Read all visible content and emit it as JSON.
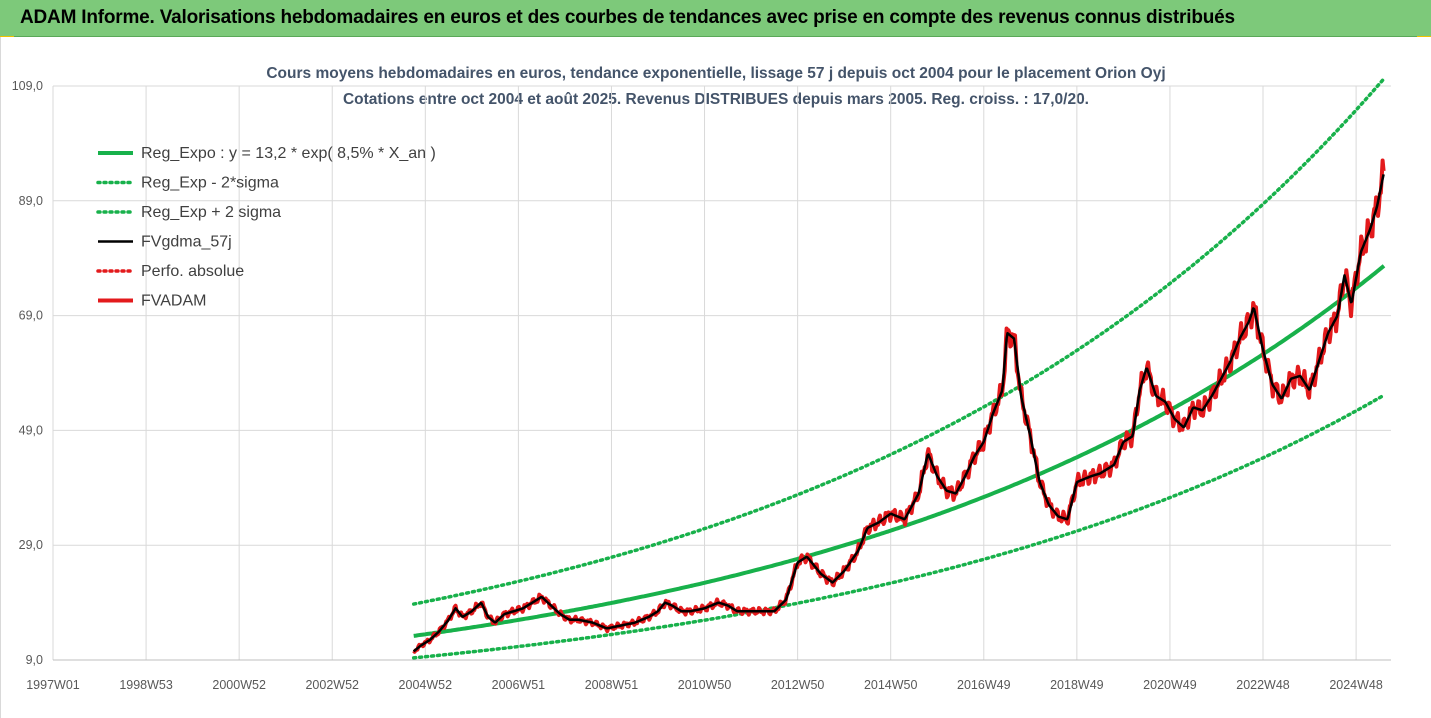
{
  "header": {
    "title": "ADAM Informe. Valorisations hebdomadaires en euros et des courbes de tendances avec prise en compte des revenus connus distribués"
  },
  "chart_data": {
    "type": "line",
    "title": "Cours moyens hebdomadaires en euros, tendance exponentielle, lissage 57 j depuis oct 2004 pour le placement Orion Oyj",
    "subtitle": "Cotations entre oct 2004 et août 2025. Revenus DISTRIBUES depuis mars 2005. Reg. croiss. : 17,0/20.",
    "ylim": [
      9.0,
      109.0
    ],
    "xlim": [
      1997.0,
      2025.75
    ],
    "y_ticks": [
      "9,0",
      "29,0",
      "49,0",
      "69,0",
      "89,0",
      "109,0"
    ],
    "y_tick_values": [
      9,
      29,
      49,
      69,
      89,
      109
    ],
    "x_ticks": [
      "1997W01",
      "1998W53",
      "2000W52",
      "2002W52",
      "2004W52",
      "2006W51",
      "2008W51",
      "2010W50",
      "2012W50",
      "2014W50",
      "2016W49",
      "2018W49",
      "2020W49",
      "2022W48",
      "2024W48"
    ],
    "x_tick_values": [
      1997.0,
      1999.0,
      2001.0,
      2003.0,
      2005.0,
      2007.0,
      2009.0,
      2011.0,
      2013.0,
      2015.0,
      2017.0,
      2019.0,
      2021.0,
      2023.0,
      2025.0
    ],
    "grid": true,
    "legend_position": "top-left",
    "regression": {
      "a": 13.2,
      "rate": 0.085,
      "start_year": 2004.75,
      "end_year": 2025.6
    },
    "series": [
      {
        "name": "Reg_Expo : y = 13,2 * exp( 8,5% *  X_an )",
        "color": "#18b14b",
        "style": "solid",
        "kind": "reg",
        "sigma_factor": 1.0
      },
      {
        "name": "Reg_Exp - 2*sigma",
        "color": "#18b14b",
        "style": "dotted",
        "kind": "reg",
        "sigma_factor": 0.71
      },
      {
        "name": "Reg_Exp + 2 sigma",
        "color": "#18b14b",
        "style": "dotted",
        "kind": "reg",
        "sigma_factor": 1.42
      },
      {
        "name": "FVgdma_57j",
        "color": "#000000",
        "style": "solid",
        "kind": "smooth"
      },
      {
        "name": "Perfo. absolue",
        "color": "#e31a1c",
        "style": "dotted",
        "kind": "none"
      },
      {
        "name": "FVADAM",
        "color": "#e31a1c",
        "style": "solid",
        "kind": "price"
      }
    ],
    "price_points": [
      [
        2004.75,
        10.5
      ],
      [
        2004.9,
        11.5
      ],
      [
        2005.1,
        12.5
      ],
      [
        2005.3,
        14.0
      ],
      [
        2005.5,
        16.0
      ],
      [
        2005.65,
        18.0
      ],
      [
        2005.8,
        16.5
      ],
      [
        2006.0,
        17.5
      ],
      [
        2006.2,
        19.0
      ],
      [
        2006.35,
        16.5
      ],
      [
        2006.5,
        15.5
      ],
      [
        2006.7,
        17.0
      ],
      [
        2006.9,
        17.5
      ],
      [
        2007.1,
        18.0
      ],
      [
        2007.3,
        19.0
      ],
      [
        2007.5,
        20.0
      ],
      [
        2007.7,
        18.5
      ],
      [
        2007.9,
        17.0
      ],
      [
        2008.1,
        16.0
      ],
      [
        2008.3,
        16.0
      ],
      [
        2008.6,
        15.5
      ],
      [
        2008.9,
        14.5
      ],
      [
        2009.2,
        15.0
      ],
      [
        2009.5,
        15.5
      ],
      [
        2009.8,
        16.5
      ],
      [
        2010.0,
        17.5
      ],
      [
        2010.15,
        19.0
      ],
      [
        2010.3,
        18.5
      ],
      [
        2010.5,
        17.5
      ],
      [
        2010.7,
        17.5
      ],
      [
        2011.0,
        18.0
      ],
      [
        2011.3,
        19.0
      ],
      [
        2011.5,
        18.5
      ],
      [
        2011.7,
        17.5
      ],
      [
        2012.0,
        17.5
      ],
      [
        2012.3,
        17.5
      ],
      [
        2012.5,
        17.5
      ],
      [
        2012.75,
        19.5
      ],
      [
        2013.0,
        26.0
      ],
      [
        2013.2,
        27.0
      ],
      [
        2013.5,
        24.0
      ],
      [
        2013.75,
        22.5
      ],
      [
        2014.0,
        24.5
      ],
      [
        2014.3,
        28.0
      ],
      [
        2014.5,
        32.0
      ],
      [
        2014.75,
        33.0
      ],
      [
        2015.0,
        34.5
      ],
      [
        2015.3,
        33.5
      ],
      [
        2015.6,
        38.0
      ],
      [
        2015.8,
        45.0
      ],
      [
        2016.0,
        41.0
      ],
      [
        2016.2,
        38.5
      ],
      [
        2016.4,
        38.0
      ],
      [
        2016.6,
        41.0
      ],
      [
        2016.8,
        44.5
      ],
      [
        2017.0,
        47.0
      ],
      [
        2017.2,
        52.0
      ],
      [
        2017.4,
        56.0
      ],
      [
        2017.5,
        66.0
      ],
      [
        2017.65,
        65.0
      ],
      [
        2017.8,
        55.0
      ],
      [
        2018.0,
        48.0
      ],
      [
        2018.2,
        40.0
      ],
      [
        2018.4,
        36.0
      ],
      [
        2018.6,
        34.0
      ],
      [
        2018.8,
        33.5
      ],
      [
        2019.0,
        40.0
      ],
      [
        2019.3,
        41.0
      ],
      [
        2019.5,
        41.5
      ],
      [
        2019.8,
        43.0
      ],
      [
        2020.0,
        47.0
      ],
      [
        2020.2,
        48.0
      ],
      [
        2020.35,
        56.0
      ],
      [
        2020.5,
        60.0
      ],
      [
        2020.7,
        55.0
      ],
      [
        2020.9,
        54.0
      ],
      [
        2021.1,
        51.0
      ],
      [
        2021.3,
        49.5
      ],
      [
        2021.5,
        53.0
      ],
      [
        2021.7,
        52.5
      ],
      [
        2021.9,
        55.0
      ],
      [
        2022.1,
        58.0
      ],
      [
        2022.3,
        61.0
      ],
      [
        2022.5,
        65.0
      ],
      [
        2022.7,
        68.0
      ],
      [
        2022.8,
        70.5
      ],
      [
        2023.0,
        63.0
      ],
      [
        2023.2,
        57.0
      ],
      [
        2023.4,
        54.5
      ],
      [
        2023.6,
        58.0
      ],
      [
        2023.8,
        58.5
      ],
      [
        2024.0,
        56.0
      ],
      [
        2024.2,
        61.0
      ],
      [
        2024.4,
        66.0
      ],
      [
        2024.6,
        69.0
      ],
      [
        2024.75,
        76.0
      ],
      [
        2024.9,
        71.0
      ],
      [
        2025.1,
        80.0
      ],
      [
        2025.3,
        84.0
      ],
      [
        2025.45,
        88.0
      ],
      [
        2025.6,
        94.0
      ]
    ]
  }
}
